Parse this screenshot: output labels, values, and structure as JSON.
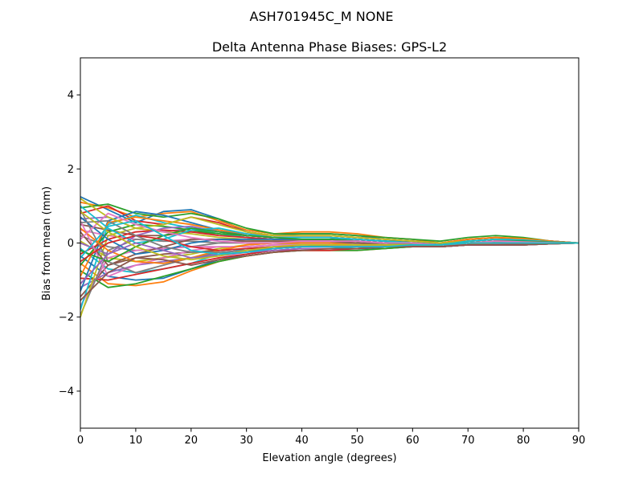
{
  "chart_data": {
    "type": "line",
    "suptitle": "ASH701945C_M    NONE",
    "title": "Delta Antenna Phase Biases: GPS-L2",
    "xlabel": "Elevation angle (degrees)",
    "ylabel": "Bias from mean (mm)",
    "xlim": [
      0,
      90
    ],
    "ylim": [
      -5,
      5
    ],
    "x_ticks": [
      {
        "value": 0,
        "label": "0"
      },
      {
        "value": 10,
        "label": "10"
      },
      {
        "value": 20,
        "label": "20"
      },
      {
        "value": 30,
        "label": "30"
      },
      {
        "value": 40,
        "label": "40"
      },
      {
        "value": 50,
        "label": "50"
      },
      {
        "value": 60,
        "label": "60"
      },
      {
        "value": 70,
        "label": "70"
      },
      {
        "value": 80,
        "label": "80"
      },
      {
        "value": 90,
        "label": "90"
      }
    ],
    "y_ticks": [
      {
        "value": -4,
        "label": "−4"
      },
      {
        "value": -2,
        "label": "−2"
      },
      {
        "value": 0,
        "label": "0"
      },
      {
        "value": 2,
        "label": "2"
      },
      {
        "value": 4,
        "label": "4"
      }
    ],
    "grid": false,
    "legend": false,
    "x": [
      0,
      5,
      10,
      15,
      20,
      25,
      30,
      35,
      40,
      45,
      50,
      55,
      60,
      65,
      70,
      75,
      80,
      85,
      90
    ],
    "palette": [
      "#1f77b4",
      "#ff7f0e",
      "#2ca02c",
      "#d62728",
      "#9467bd",
      "#8c564b",
      "#e377c2",
      "#7f7f7f",
      "#bcbd22",
      "#17becf"
    ],
    "series": [
      {
        "values": [
          1.25,
          0.9,
          0.55,
          0.85,
          0.9,
          0.65,
          0.3,
          0.2,
          0.25,
          0.25,
          0.2,
          0.1,
          0.05,
          -0.05,
          0.05,
          0.1,
          0.1,
          0.05,
          0.0
        ]
      },
      {
        "values": [
          1.1,
          0.95,
          0.7,
          0.8,
          0.85,
          0.6,
          0.35,
          0.25,
          0.3,
          0.3,
          0.25,
          0.15,
          0.1,
          0.0,
          0.1,
          0.15,
          0.12,
          0.05,
          0.0
        ]
      },
      {
        "values": [
          0.95,
          1.05,
          0.8,
          0.7,
          0.8,
          0.65,
          0.4,
          0.25,
          0.25,
          0.25,
          0.2,
          0.15,
          0.1,
          0.05,
          0.15,
          0.2,
          0.15,
          0.05,
          0.0
        ]
      },
      {
        "values": [
          0.8,
          1.0,
          0.6,
          0.5,
          0.7,
          0.55,
          0.3,
          0.2,
          0.2,
          0.2,
          0.15,
          0.1,
          0.05,
          0.0,
          0.1,
          0.15,
          0.1,
          0.05,
          0.0
        ]
      },
      {
        "values": [
          0.65,
          0.7,
          0.4,
          0.3,
          0.4,
          0.35,
          0.2,
          0.15,
          0.15,
          0.15,
          0.1,
          0.05,
          0.0,
          -0.05,
          0.05,
          0.1,
          0.08,
          0.03,
          0.0
        ]
      },
      {
        "values": [
          0.5,
          0.35,
          0.2,
          0.2,
          0.3,
          0.25,
          0.15,
          0.1,
          0.1,
          0.1,
          0.05,
          0.0,
          -0.05,
          -0.05,
          0.0,
          0.05,
          0.05,
          0.02,
          0.0
        ]
      },
      {
        "values": [
          0.35,
          0.2,
          0.1,
          0.05,
          0.1,
          0.1,
          0.1,
          0.05,
          0.05,
          0.05,
          0.0,
          -0.05,
          -0.05,
          -0.05,
          0.0,
          0.05,
          0.03,
          0.01,
          0.0
        ]
      },
      {
        "values": [
          0.2,
          -0.1,
          -0.2,
          -0.15,
          -0.1,
          0.0,
          0.05,
          0.05,
          0.0,
          0.0,
          -0.05,
          -0.05,
          -0.1,
          -0.1,
          -0.05,
          0.0,
          0.0,
          0.0,
          0.0
        ]
      },
      {
        "values": [
          0.05,
          -0.4,
          -0.5,
          -0.4,
          -0.3,
          -0.15,
          -0.05,
          0.0,
          -0.05,
          -0.05,
          -0.1,
          -0.1,
          -0.1,
          -0.1,
          -0.05,
          0.0,
          -0.02,
          -0.01,
          0.0
        ]
      },
      {
        "values": [
          -0.15,
          -0.7,
          -0.8,
          -0.7,
          -0.55,
          -0.3,
          -0.15,
          -0.1,
          -0.1,
          -0.1,
          -0.15,
          -0.1,
          -0.1,
          -0.1,
          -0.05,
          -0.05,
          -0.05,
          -0.02,
          0.0
        ]
      },
      {
        "values": [
          -0.35,
          -0.9,
          -1.0,
          -0.95,
          -0.7,
          -0.45,
          -0.3,
          -0.2,
          -0.15,
          -0.15,
          -0.15,
          -0.15,
          -0.1,
          -0.1,
          -0.05,
          -0.05,
          -0.05,
          -0.02,
          0.0
        ]
      },
      {
        "values": [
          -0.55,
          -1.1,
          -1.15,
          -1.05,
          -0.75,
          -0.5,
          -0.35,
          -0.25,
          -0.2,
          -0.2,
          -0.2,
          -0.15,
          -0.1,
          -0.1,
          -0.05,
          -0.05,
          -0.05,
          -0.02,
          0.0
        ]
      },
      {
        "values": [
          -0.75,
          -1.2,
          -1.1,
          -0.9,
          -0.7,
          -0.5,
          -0.35,
          -0.25,
          -0.2,
          -0.2,
          -0.2,
          -0.15,
          -0.1,
          -0.1,
          -0.05,
          -0.05,
          -0.05,
          -0.02,
          0.0
        ]
      },
      {
        "values": [
          -0.95,
          -1.0,
          -0.85,
          -0.7,
          -0.55,
          -0.4,
          -0.3,
          -0.2,
          -0.2,
          -0.2,
          -0.15,
          -0.1,
          -0.1,
          -0.1,
          -0.05,
          -0.05,
          -0.05,
          -0.02,
          0.0
        ]
      },
      {
        "values": [
          -1.2,
          -0.8,
          -0.6,
          -0.5,
          -0.4,
          -0.3,
          -0.25,
          -0.2,
          -0.15,
          -0.15,
          -0.15,
          -0.1,
          -0.1,
          -0.05,
          -0.05,
          -0.05,
          -0.03,
          -0.01,
          0.0
        ]
      },
      {
        "values": [
          -1.45,
          -0.6,
          -0.4,
          -0.3,
          -0.25,
          -0.2,
          -0.15,
          -0.15,
          -0.1,
          -0.1,
          -0.1,
          -0.1,
          -0.05,
          -0.05,
          0.0,
          0.0,
          0.0,
          0.0,
          0.0
        ]
      },
      {
        "values": [
          -1.7,
          -0.4,
          -0.2,
          -0.15,
          -0.1,
          -0.1,
          -0.1,
          -0.05,
          -0.05,
          -0.05,
          -0.05,
          -0.05,
          -0.05,
          -0.05,
          0.0,
          0.0,
          0.0,
          0.0,
          0.0
        ]
      },
      {
        "values": [
          -1.95,
          -0.2,
          0.1,
          0.05,
          0.05,
          0.0,
          0.0,
          0.0,
          0.0,
          0.0,
          0.0,
          0.0,
          0.0,
          -0.05,
          0.0,
          0.05,
          0.03,
          0.01,
          0.0
        ]
      },
      {
        "values": [
          -2.0,
          0.2,
          0.4,
          0.3,
          0.25,
          0.15,
          0.1,
          0.05,
          0.05,
          0.05,
          0.05,
          0.0,
          0.0,
          -0.05,
          0.0,
          0.05,
          0.05,
          0.02,
          0.0
        ]
      },
      {
        "values": [
          -1.8,
          0.5,
          0.75,
          0.55,
          0.4,
          0.25,
          0.15,
          0.1,
          0.1,
          0.1,
          0.1,
          0.05,
          0.0,
          -0.05,
          0.05,
          0.1,
          0.08,
          0.03,
          0.0
        ]
      },
      {
        "values": [
          -1.3,
          0.6,
          0.85,
          0.75,
          0.55,
          0.35,
          0.2,
          0.15,
          0.15,
          0.15,
          0.1,
          0.05,
          0.05,
          0.0,
          0.05,
          0.1,
          0.1,
          0.05,
          0.0
        ]
      },
      {
        "values": [
          -0.9,
          0.55,
          0.7,
          0.6,
          0.5,
          0.35,
          0.25,
          0.2,
          0.2,
          0.2,
          0.15,
          0.1,
          0.05,
          0.0,
          0.1,
          0.15,
          0.12,
          0.05,
          0.0
        ]
      },
      {
        "values": [
          -0.6,
          0.3,
          0.5,
          0.45,
          0.35,
          0.25,
          0.2,
          0.15,
          0.15,
          0.15,
          0.1,
          0.05,
          0.0,
          -0.05,
          0.05,
          0.1,
          0.08,
          0.03,
          0.0
        ]
      },
      {
        "values": [
          -0.3,
          0.1,
          0.3,
          0.35,
          0.3,
          0.2,
          0.15,
          0.1,
          0.1,
          0.1,
          0.05,
          0.0,
          -0.05,
          -0.05,
          0.0,
          0.05,
          0.05,
          0.02,
          0.0
        ]
      },
      {
        "values": [
          0.0,
          -0.3,
          0.2,
          0.4,
          0.45,
          0.3,
          0.2,
          0.15,
          0.15,
          0.15,
          0.1,
          0.05,
          0.0,
          -0.05,
          0.05,
          0.1,
          0.08,
          0.03,
          0.0
        ]
      },
      {
        "values": [
          0.3,
          -0.6,
          -0.3,
          -0.1,
          0.1,
          0.1,
          0.05,
          0.05,
          0.05,
          0.05,
          0.0,
          -0.05,
          -0.05,
          -0.1,
          -0.05,
          0.0,
          0.0,
          0.0,
          0.0
        ]
      },
      {
        "values": [
          0.6,
          -0.9,
          -0.6,
          -0.4,
          -0.2,
          -0.1,
          -0.1,
          -0.05,
          -0.05,
          -0.05,
          -0.1,
          -0.1,
          -0.1,
          -0.1,
          -0.05,
          -0.05,
          -0.03,
          -0.01,
          0.0
        ]
      },
      {
        "values": [
          0.9,
          -0.5,
          -0.8,
          -0.6,
          -0.4,
          -0.25,
          -0.2,
          -0.15,
          -0.1,
          -0.1,
          -0.1,
          -0.1,
          -0.1,
          -0.1,
          -0.05,
          -0.05,
          -0.05,
          -0.02,
          0.0
        ]
      },
      {
        "values": [
          1.2,
          0.7,
          0.4,
          0.5,
          0.7,
          0.5,
          0.3,
          0.2,
          0.2,
          0.2,
          0.15,
          0.1,
          0.05,
          0.0,
          0.05,
          0.1,
          0.08,
          0.03,
          0.0
        ]
      },
      {
        "values": [
          1.0,
          0.4,
          0.0,
          0.1,
          0.35,
          0.4,
          0.25,
          0.15,
          0.15,
          0.15,
          0.1,
          0.05,
          0.0,
          -0.05,
          0.05,
          0.1,
          0.08,
          0.03,
          0.0
        ]
      },
      {
        "values": [
          0.7,
          0.1,
          -0.3,
          -0.2,
          0.0,
          0.1,
          0.1,
          0.1,
          0.1,
          0.1,
          0.05,
          0.0,
          -0.05,
          -0.05,
          0.0,
          0.05,
          0.05,
          0.02,
          0.0
        ]
      },
      {
        "values": [
          0.4,
          -0.2,
          -0.5,
          -0.55,
          -0.4,
          -0.2,
          -0.05,
          0.0,
          0.0,
          0.0,
          -0.05,
          -0.05,
          -0.1,
          -0.1,
          -0.05,
          0.0,
          -0.02,
          -0.01,
          0.0
        ]
      },
      {
        "values": [
          -0.2,
          -0.5,
          -0.1,
          0.2,
          0.4,
          0.3,
          0.2,
          0.15,
          0.1,
          0.1,
          0.05,
          0.0,
          -0.05,
          -0.05,
          0.0,
          0.05,
          0.05,
          0.02,
          0.0
        ]
      },
      {
        "values": [
          -0.5,
          0.0,
          0.2,
          0.1,
          -0.1,
          -0.2,
          -0.15,
          -0.1,
          -0.1,
          -0.1,
          -0.1,
          -0.1,
          -0.1,
          -0.1,
          -0.05,
          -0.05,
          -0.03,
          -0.01,
          0.0
        ]
      },
      {
        "values": [
          -1.1,
          -0.3,
          0.0,
          -0.2,
          -0.4,
          -0.35,
          -0.25,
          -0.15,
          -0.1,
          -0.1,
          -0.1,
          -0.1,
          -0.1,
          -0.1,
          -0.05,
          -0.05,
          -0.05,
          -0.02,
          0.0
        ]
      },
      {
        "values": [
          -1.55,
          -0.8,
          -0.4,
          -0.45,
          -0.6,
          -0.45,
          -0.35,
          -0.25,
          -0.2,
          -0.15,
          -0.15,
          -0.1,
          -0.1,
          -0.1,
          -0.05,
          -0.05,
          -0.05,
          -0.02,
          0.0
        ]
      },
      {
        "values": [
          0.1,
          0.8,
          0.5,
          0.3,
          0.15,
          0.05,
          0.0,
          0.0,
          0.05,
          0.05,
          0.05,
          0.0,
          0.0,
          -0.05,
          0.0,
          0.05,
          0.03,
          0.01,
          0.0
        ]
      },
      {
        "values": [
          0.55,
          0.6,
          0.2,
          -0.1,
          -0.25,
          -0.25,
          -0.2,
          -0.15,
          -0.1,
          -0.05,
          -0.05,
          -0.05,
          -0.05,
          -0.05,
          0.0,
          0.0,
          0.0,
          0.0,
          0.0
        ]
      },
      {
        "values": [
          0.85,
          0.3,
          -0.1,
          -0.35,
          -0.45,
          -0.35,
          -0.2,
          -0.1,
          -0.05,
          -0.05,
          -0.05,
          -0.05,
          -0.05,
          -0.05,
          0.0,
          0.0,
          0.0,
          0.0,
          0.0
        ]
      },
      {
        "values": [
          -0.4,
          0.45,
          0.6,
          0.2,
          -0.2,
          -0.3,
          -0.25,
          -0.15,
          -0.1,
          -0.1,
          -0.1,
          -0.1,
          -0.05,
          -0.05,
          0.0,
          0.0,
          0.0,
          0.0,
          0.0
        ]
      }
    ]
  }
}
